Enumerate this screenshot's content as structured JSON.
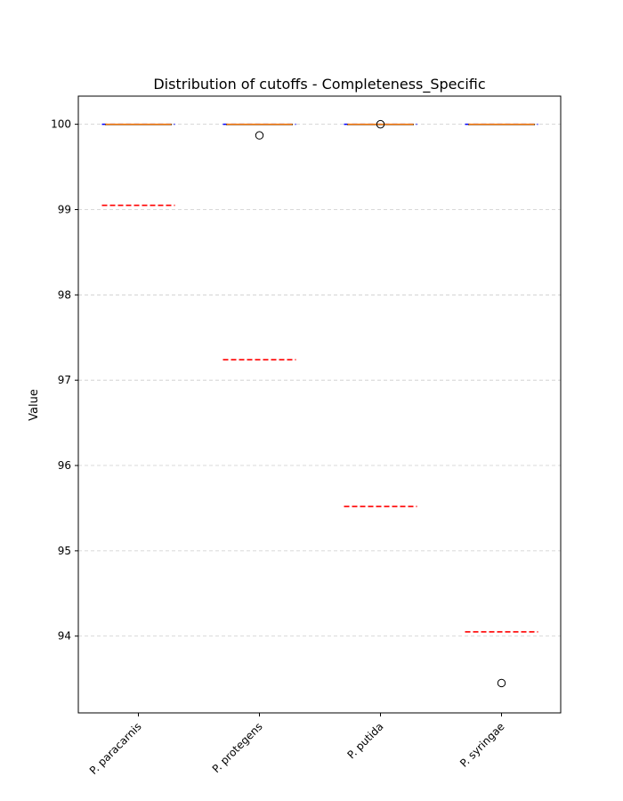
{
  "chart_data": {
    "type": "box",
    "title": "Distribution of cutoffs - Completeness_Specific",
    "xlabel": "",
    "ylabel": "Value",
    "ylim": [
      93.1,
      100.33
    ],
    "yticks": [
      94,
      95,
      96,
      97,
      98,
      99,
      100
    ],
    "grid": "horizontal-dashed",
    "categories": [
      "P. paracarnis",
      "P. protegens",
      "P. putida",
      "P. syringae"
    ],
    "boxes": [
      {
        "name": "P. paracarnis",
        "q1": 100,
        "median": 100,
        "q3": 100,
        "whisker_low": 100,
        "whisker_high": 100,
        "outliers": [],
        "blue_line": 100,
        "red_line": 99.05
      },
      {
        "name": "P. protegens",
        "q1": 100,
        "median": 100,
        "q3": 100,
        "whisker_low": 100,
        "whisker_high": 100,
        "outliers": [
          99.87
        ],
        "blue_line": 100,
        "red_line": 97.24
      },
      {
        "name": "P. putida",
        "q1": 100,
        "median": 100,
        "q3": 100,
        "whisker_low": 100,
        "whisker_high": 100,
        "outliers": [
          100
        ],
        "blue_line": 100,
        "red_line": 95.52
      },
      {
        "name": "P. syringae",
        "q1": 100,
        "median": 100,
        "q3": 100,
        "whisker_low": 100,
        "whisker_high": 100,
        "outliers": [
          93.45
        ],
        "blue_line": 100,
        "red_line": 94.05
      }
    ],
    "colors": {
      "box": "#000000",
      "median": "#ff7f0e",
      "blue_line": "#0000ff",
      "red_line": "#ff0000",
      "grid": "#cccccc"
    }
  }
}
